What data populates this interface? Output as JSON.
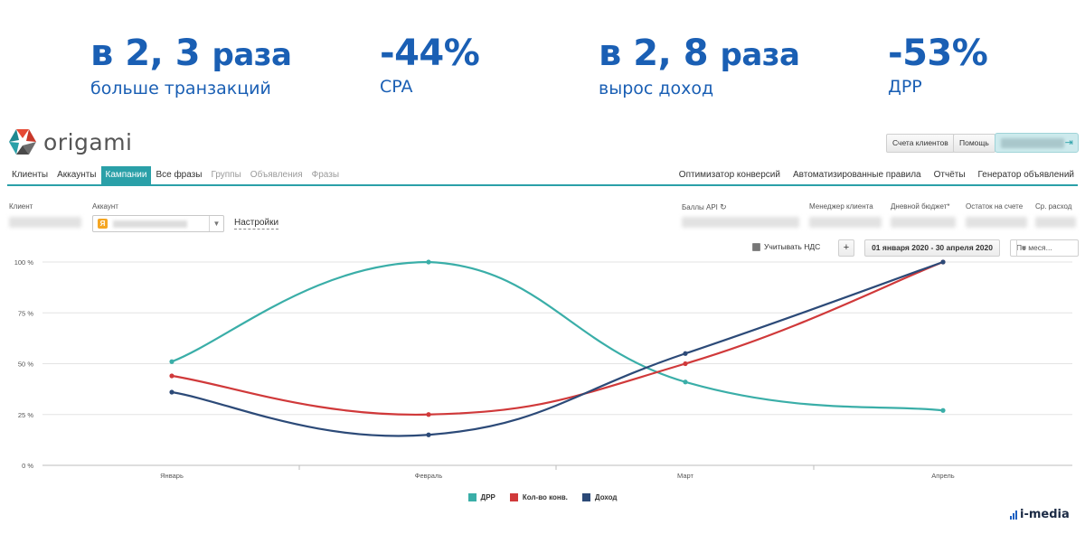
{
  "kpis": [
    {
      "prefix": "в",
      "value": "2, 3",
      "suffix": "раза",
      "label": "больше транзакций"
    },
    {
      "prefix": "",
      "value": "-44%",
      "suffix": "",
      "label": "CPA"
    },
    {
      "prefix": "в",
      "value": "2, 8",
      "suffix": "раза",
      "label": "вырос доход"
    },
    {
      "prefix": "",
      "value": "-53%",
      "suffix": "",
      "label": "ДРР"
    }
  ],
  "app": {
    "logo_text": "origami",
    "header_buttons": {
      "client_accounts": "Счета клиентов",
      "help": "Помощь"
    }
  },
  "nav": {
    "tabs": [
      "Клиенты",
      "Аккаунты",
      "Кампании",
      "Все фразы",
      "Группы",
      "Объявления",
      "Фразы"
    ],
    "active_tab": "Кампании",
    "right_links": [
      "Оптимизатор конверсий",
      "Автоматизированные правила",
      "Отчёты",
      "Генератор объявлений"
    ]
  },
  "filters": {
    "client_label": "Клиент",
    "account_label": "Аккаунт",
    "settings_link": "Настройки",
    "api_points_label": "Баллы API",
    "manager_label": "Менеджер клиента",
    "daily_budget_label": "Дневной бюджет*",
    "balance_label": "Остаток на счете",
    "avg_spend_label": "Ср. расход"
  },
  "toolbar": {
    "vat_label": "Учитывать НДС",
    "plus_label": "+",
    "date_range": "01 января 2020 - 30 апреля 2020",
    "period": "По меся..."
  },
  "chart_data": {
    "type": "line",
    "categories": [
      "Январь",
      "Февраль",
      "Март",
      "Апрель"
    ],
    "y_ticks": [
      "100 %",
      "75 %",
      "50 %",
      "25 %",
      "0 %"
    ],
    "ylim": [
      0,
      100
    ],
    "grid": true,
    "legend_position": "bottom",
    "series": [
      {
        "name": "ДРР",
        "color": "#3aaea8",
        "values": [
          51,
          100,
          41,
          27
        ]
      },
      {
        "name": "Кол-во конв.",
        "color": "#d0393a",
        "values": [
          44,
          25,
          50,
          100
        ]
      },
      {
        "name": "Доход",
        "color": "#2c4a78",
        "values": [
          36,
          15,
          55,
          100
        ]
      }
    ]
  },
  "brand": {
    "name": "i-media"
  }
}
